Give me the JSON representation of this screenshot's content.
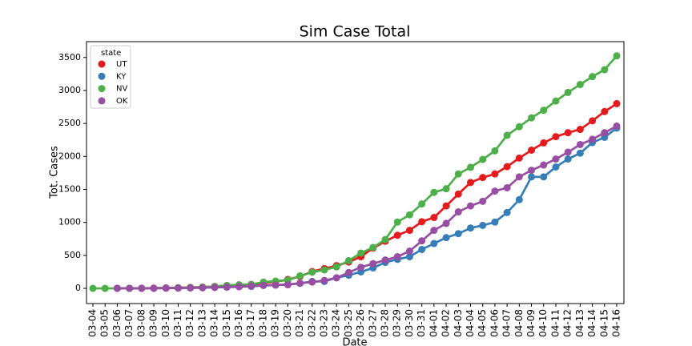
{
  "chart_data": {
    "type": "pointplot",
    "title": "Sim Case Total",
    "x_label": "Date",
    "y_label": "Tot. Cases",
    "legend_title": "state",
    "legend_position": "upper left",
    "categories": [
      "03-04",
      "03-05",
      "03-06",
      "03-07",
      "03-08",
      "03-09",
      "03-10",
      "03-11",
      "03-12",
      "03-13",
      "03-14",
      "03-15",
      "03-16",
      "03-17",
      "03-18",
      "03-19",
      "03-20",
      "03-21",
      "03-22",
      "03-23",
      "03-24",
      "03-25",
      "03-26",
      "03-27",
      "03-28",
      "03-29",
      "03-30",
      "03-31",
      "04-01",
      "04-02",
      "04-03",
      "04-04",
      "04-05",
      "04-06",
      "04-07",
      "04-08",
      "04-09",
      "04-10",
      "04-11",
      "04-12",
      "04-13",
      "04-14",
      "04-15",
      "04-16"
    ],
    "series": [
      {
        "name": "UT",
        "color": "#e41a1c",
        "values": [
          null,
          null,
          1,
          1,
          2,
          4,
          6,
          10,
          15,
          20,
          30,
          40,
          50,
          60,
          80,
          100,
          135,
          180,
          255,
          300,
          345,
          400,
          480,
          610,
          715,
          805,
          880,
          1010,
          1075,
          1250,
          1430,
          1605,
          1680,
          1735,
          1845,
          1975,
          2095,
          2205,
          2300,
          2360,
          2410,
          2540,
          2680,
          2800
        ]
      },
      {
        "name": "KY",
        "color": "#377eb8",
        "values": [
          null,
          null,
          1,
          1,
          1,
          2,
          4,
          5,
          8,
          10,
          15,
          20,
          25,
          30,
          45,
          50,
          60,
          75,
          105,
          105,
          160,
          200,
          250,
          310,
          395,
          440,
          480,
          590,
          680,
          770,
          830,
          915,
          955,
          1005,
          1150,
          1345,
          1690,
          1690,
          1840,
          1960,
          2050,
          2210,
          2290,
          2430
        ]
      },
      {
        "name": "NV",
        "color": "#4daf4a",
        "values": [
          0,
          0,
          1,
          1,
          2,
          4,
          6,
          10,
          14,
          20,
          30,
          45,
          55,
          60,
          95,
          110,
          125,
          190,
          245,
          280,
          325,
          420,
          535,
          620,
          740,
          1005,
          1115,
          1280,
          1455,
          1510,
          1735,
          1835,
          1955,
          2085,
          2320,
          2450,
          2585,
          2700,
          2840,
          2970,
          3090,
          3210,
          3315,
          3525
        ]
      },
      {
        "name": "OK",
        "color": "#984ea3",
        "values": [
          null,
          null,
          1,
          1,
          1,
          2,
          4,
          5,
          8,
          10,
          15,
          20,
          25,
          35,
          45,
          50,
          55,
          80,
          95,
          120,
          160,
          240,
          320,
          375,
          430,
          480,
          565,
          720,
          880,
          985,
          1160,
          1250,
          1320,
          1475,
          1525,
          1690,
          1790,
          1870,
          1960,
          2065,
          2180,
          2260,
          2360,
          2460
        ]
      }
    ],
    "ylim": [
      -230,
      3740
    ],
    "yticks": [
      0,
      500,
      1000,
      1500,
      2000,
      2500,
      3000,
      3500
    ]
  }
}
